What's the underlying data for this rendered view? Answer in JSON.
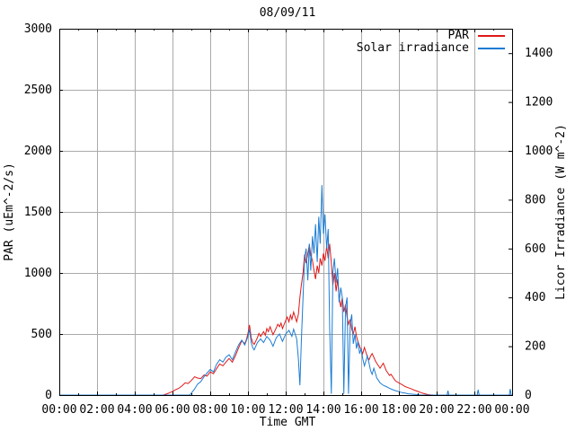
{
  "chart_data": {
    "type": "line",
    "title": "08/09/11",
    "xlabel": "Time GMT",
    "xlim_hours": [
      0,
      24
    ],
    "x_tick_labels": [
      "00:00",
      "02:00",
      "04:00",
      "06:00",
      "08:00",
      "10:00",
      "12:00",
      "14:00",
      "16:00",
      "18:00",
      "20:00",
      "22:00",
      "00:00"
    ],
    "x_minor_tick_interval_hours": 1,
    "grid": true,
    "legend_position": "top-right",
    "left_axis": {
      "label": "PAR (uEm^-2/s)",
      "range": [
        0,
        3000
      ],
      "ticks": [
        0,
        500,
        1000,
        1500,
        2000,
        2500,
        3000
      ]
    },
    "right_axis": {
      "label": "Licor Irradiance (W m^-2)",
      "range": [
        0,
        1500
      ],
      "ticks": [
        0,
        200,
        400,
        600,
        800,
        1000,
        1200,
        1400
      ]
    },
    "colors": {
      "grid": "#aaaaaa",
      "axis": "#000000",
      "background": "#ffffff"
    },
    "series": [
      {
        "name": "PAR",
        "axis": "left",
        "color": "#e01818",
        "points_hour_value": [
          [
            0,
            0
          ],
          [
            5.5,
            0
          ],
          [
            5.67,
            8
          ],
          [
            5.83,
            18
          ],
          [
            6,
            30
          ],
          [
            6.17,
            45
          ],
          [
            6.33,
            55
          ],
          [
            6.5,
            75
          ],
          [
            6.67,
            100
          ],
          [
            6.83,
            95
          ],
          [
            7,
            120
          ],
          [
            7.17,
            150
          ],
          [
            7.33,
            140
          ],
          [
            7.5,
            135
          ],
          [
            7.67,
            165
          ],
          [
            7.83,
            155
          ],
          [
            8,
            190
          ],
          [
            8.17,
            175
          ],
          [
            8.33,
            215
          ],
          [
            8.5,
            255
          ],
          [
            8.67,
            240
          ],
          [
            8.83,
            270
          ],
          [
            9,
            300
          ],
          [
            9.17,
            270
          ],
          [
            9.33,
            320
          ],
          [
            9.5,
            385
          ],
          [
            9.67,
            445
          ],
          [
            9.83,
            420
          ],
          [
            9.92,
            455
          ],
          [
            10,
            505
          ],
          [
            10.08,
            575
          ],
          [
            10.17,
            470
          ],
          [
            10.25,
            430
          ],
          [
            10.33,
            415
          ],
          [
            10.5,
            470
          ],
          [
            10.58,
            505
          ],
          [
            10.67,
            480
          ],
          [
            10.83,
            520
          ],
          [
            10.92,
            490
          ],
          [
            11,
            545
          ],
          [
            11.08,
            520
          ],
          [
            11.17,
            560
          ],
          [
            11.33,
            495
          ],
          [
            11.5,
            550
          ],
          [
            11.58,
            580
          ],
          [
            11.67,
            560
          ],
          [
            11.75,
            590
          ],
          [
            11.83,
            545
          ],
          [
            12,
            610
          ],
          [
            12.08,
            640
          ],
          [
            12.17,
            600
          ],
          [
            12.25,
            655
          ],
          [
            12.33,
            620
          ],
          [
            12.42,
            680
          ],
          [
            12.5,
            640
          ],
          [
            12.58,
            600
          ],
          [
            12.67,
            660
          ],
          [
            12.75,
            800
          ],
          [
            12.83,
            900
          ],
          [
            12.92,
            1000
          ],
          [
            13,
            1150
          ],
          [
            13.08,
            1080
          ],
          [
            13.17,
            1160
          ],
          [
            13.25,
            1230
          ],
          [
            13.33,
            1150
          ],
          [
            13.42,
            1100
          ],
          [
            13.5,
            1020
          ],
          [
            13.58,
            950
          ],
          [
            13.67,
            1060
          ],
          [
            13.75,
            1000
          ],
          [
            13.83,
            1120
          ],
          [
            13.92,
            1060
          ],
          [
            14,
            1160
          ],
          [
            14.08,
            1100
          ],
          [
            14.17,
            1220
          ],
          [
            14.25,
            1120
          ],
          [
            14.33,
            1240
          ],
          [
            14.42,
            1080
          ],
          [
            14.5,
            900
          ],
          [
            14.58,
            1000
          ],
          [
            14.67,
            850
          ],
          [
            14.75,
            950
          ],
          [
            14.83,
            800
          ],
          [
            14.92,
            720
          ],
          [
            15,
            800
          ],
          [
            15.08,
            680
          ],
          [
            15.17,
            740
          ],
          [
            15.25,
            640
          ],
          [
            15.33,
            580
          ],
          [
            15.42,
            620
          ],
          [
            15.5,
            540
          ],
          [
            15.58,
            500
          ],
          [
            15.67,
            560
          ],
          [
            15.75,
            480
          ],
          [
            15.83,
            440
          ],
          [
            15.92,
            400
          ],
          [
            16,
            370
          ],
          [
            16.08,
            340
          ],
          [
            16.17,
            390
          ],
          [
            16.25,
            350
          ],
          [
            16.33,
            310
          ],
          [
            16.42,
            290
          ],
          [
            16.5,
            320
          ],
          [
            16.58,
            340
          ],
          [
            16.67,
            310
          ],
          [
            16.75,
            280
          ],
          [
            16.83,
            260
          ],
          [
            16.92,
            240
          ],
          [
            17,
            220
          ],
          [
            17.08,
            240
          ],
          [
            17.17,
            260
          ],
          [
            17.25,
            230
          ],
          [
            17.33,
            200
          ],
          [
            17.42,
            180
          ],
          [
            17.5,
            160
          ],
          [
            17.58,
            170
          ],
          [
            17.67,
            150
          ],
          [
            17.75,
            130
          ],
          [
            17.83,
            115
          ],
          [
            18,
            100
          ],
          [
            18.17,
            85
          ],
          [
            18.33,
            70
          ],
          [
            18.5,
            60
          ],
          [
            18.67,
            50
          ],
          [
            18.83,
            40
          ],
          [
            19,
            30
          ],
          [
            19.17,
            20
          ],
          [
            19.33,
            12
          ],
          [
            19.5,
            6
          ],
          [
            19.67,
            2
          ],
          [
            19.83,
            0
          ],
          [
            24,
            0
          ]
        ]
      },
      {
        "name": "Solar irradiance",
        "axis": "right",
        "color": "#1c7cd4",
        "points_hour_value": [
          [
            0,
            0
          ],
          [
            6.9,
            0
          ],
          [
            7,
            8
          ],
          [
            7.17,
            25
          ],
          [
            7.33,
            45
          ],
          [
            7.5,
            55
          ],
          [
            7.67,
            75
          ],
          [
            7.83,
            90
          ],
          [
            8,
            105
          ],
          [
            8.17,
            95
          ],
          [
            8.33,
            125
          ],
          [
            8.5,
            145
          ],
          [
            8.67,
            135
          ],
          [
            8.83,
            155
          ],
          [
            9,
            165
          ],
          [
            9.17,
            145
          ],
          [
            9.33,
            175
          ],
          [
            9.5,
            205
          ],
          [
            9.67,
            225
          ],
          [
            9.83,
            205
          ],
          [
            10,
            240
          ],
          [
            10.08,
            270
          ],
          [
            10.17,
            215
          ],
          [
            10.25,
            195
          ],
          [
            10.33,
            185
          ],
          [
            10.5,
            215
          ],
          [
            10.67,
            230
          ],
          [
            10.83,
            215
          ],
          [
            11,
            240
          ],
          [
            11.17,
            225
          ],
          [
            11.33,
            200
          ],
          [
            11.5,
            235
          ],
          [
            11.67,
            250
          ],
          [
            11.83,
            220
          ],
          [
            12,
            250
          ],
          [
            12.17,
            265
          ],
          [
            12.33,
            240
          ],
          [
            12.42,
            270
          ],
          [
            12.5,
            250
          ],
          [
            12.58,
            230
          ],
          [
            12.67,
            150
          ],
          [
            12.75,
            40
          ],
          [
            12.83,
            220
          ],
          [
            12.92,
            400
          ],
          [
            13,
            560
          ],
          [
            13.08,
            600
          ],
          [
            13.17,
            470
          ],
          [
            13.25,
            620
          ],
          [
            13.33,
            510
          ],
          [
            13.42,
            650
          ],
          [
            13.5,
            580
          ],
          [
            13.58,
            700
          ],
          [
            13.67,
            545
          ],
          [
            13.75,
            730
          ],
          [
            13.83,
            620
          ],
          [
            13.92,
            860
          ],
          [
            14,
            660
          ],
          [
            14.08,
            740
          ],
          [
            14.17,
            600
          ],
          [
            14.25,
            680
          ],
          [
            14.33,
            280
          ],
          [
            14.42,
            5
          ],
          [
            14.5,
            500
          ],
          [
            14.58,
            560
          ],
          [
            14.67,
            460
          ],
          [
            14.75,
            520
          ],
          [
            14.83,
            380
          ],
          [
            14.92,
            440
          ],
          [
            15,
            400
          ],
          [
            15.08,
            5
          ],
          [
            15.17,
            360
          ],
          [
            15.25,
            400
          ],
          [
            15.33,
            5
          ],
          [
            15.42,
            290
          ],
          [
            15.5,
            330
          ],
          [
            15.58,
            210
          ],
          [
            15.67,
            250
          ],
          [
            15.75,
            190
          ],
          [
            15.83,
            220
          ],
          [
            15.92,
            170
          ],
          [
            16,
            190
          ],
          [
            16.08,
            150
          ],
          [
            16.17,
            120
          ],
          [
            16.25,
            140
          ],
          [
            16.33,
            160
          ],
          [
            16.42,
            130
          ],
          [
            16.5,
            100
          ],
          [
            16.58,
            85
          ],
          [
            16.67,
            110
          ],
          [
            16.75,
            90
          ],
          [
            16.83,
            70
          ],
          [
            16.92,
            60
          ],
          [
            17,
            50
          ],
          [
            17.17,
            40
          ],
          [
            17.33,
            35
          ],
          [
            17.5,
            28
          ],
          [
            17.67,
            22
          ],
          [
            17.83,
            18
          ],
          [
            18,
            14
          ],
          [
            18.17,
            10
          ],
          [
            18.33,
            8
          ],
          [
            18.5,
            5
          ],
          [
            18.67,
            4
          ],
          [
            18.83,
            3
          ],
          [
            19,
            2
          ],
          [
            19.17,
            0
          ],
          [
            20.55,
            0
          ],
          [
            20.6,
            18
          ],
          [
            20.65,
            0
          ],
          [
            22.15,
            0
          ],
          [
            22.2,
            22
          ],
          [
            22.25,
            0
          ],
          [
            23.85,
            0
          ],
          [
            23.9,
            25
          ],
          [
            23.95,
            0
          ],
          [
            24,
            0
          ]
        ]
      }
    ]
  }
}
